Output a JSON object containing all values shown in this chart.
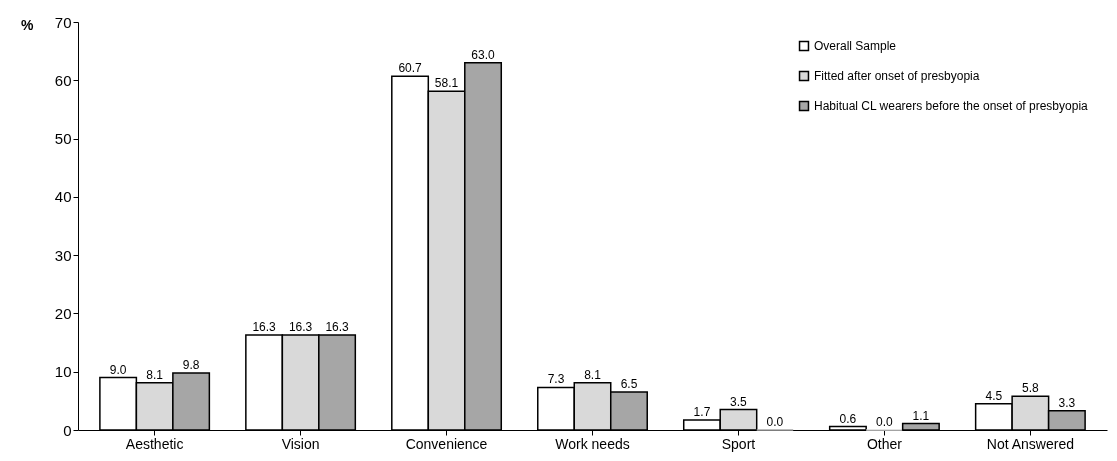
{
  "chart_data": {
    "type": "bar",
    "ylabel": "%",
    "categories": [
      "Aesthetic",
      "Vision",
      "Convenience",
      "Work needs",
      "Sport",
      "Other",
      "Not Answered"
    ],
    "series": [
      {
        "name": "Overall Sample",
        "color": "#ffffff",
        "values": [
          9.0,
          16.3,
          60.7,
          7.3,
          1.7,
          0.6,
          4.5
        ],
        "value_labels": [
          "9.0",
          "16.3",
          "60.7",
          "7.3",
          "1.7",
          "0.6",
          "4.5"
        ]
      },
      {
        "name": "Fitted after onset of presbyopia",
        "color": "#d9d9d9",
        "values": [
          8.1,
          16.3,
          58.1,
          8.1,
          3.5,
          0.0,
          5.8
        ],
        "value_labels": [
          "8.1",
          "16.3",
          "58.1",
          "8.1",
          "3.5",
          "0.0",
          "5.8"
        ]
      },
      {
        "name": "Habitual CL wearers before the onset of presbyopia",
        "color": "#a6a6a6",
        "values": [
          9.8,
          16.3,
          63.0,
          6.5,
          0.0,
          1.1,
          3.3
        ],
        "value_labels": [
          "9.8",
          "16.3",
          "63.0",
          "6.5",
          "0.0",
          "1.1",
          "3.3"
        ]
      }
    ],
    "ylim": [
      0,
      70
    ],
    "yticks": [
      0,
      10,
      20,
      30,
      40,
      50,
      60,
      70
    ],
    "grid": false,
    "legend": "top right"
  }
}
